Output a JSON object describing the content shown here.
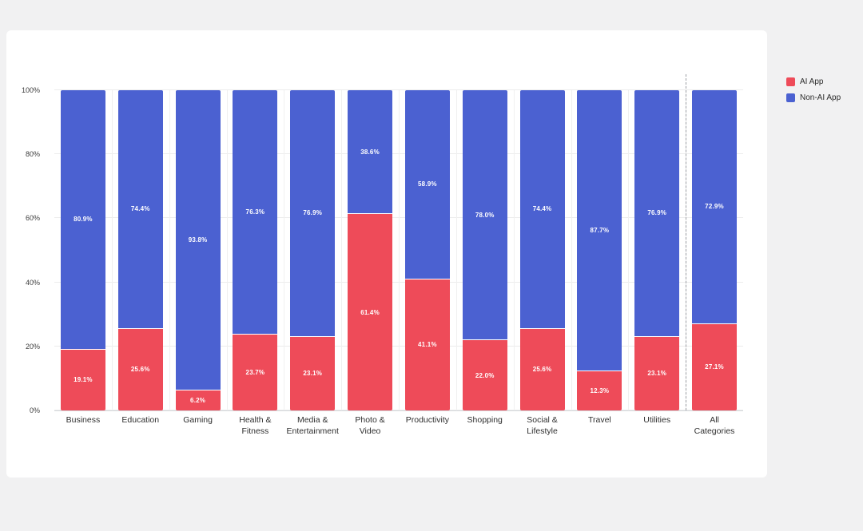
{
  "page": {
    "background": "#f1f1f2",
    "card_background": "#ffffff"
  },
  "legend": {
    "items": [
      {
        "label": "AI App",
        "color": "#ee4b59"
      },
      {
        "label": "Non-AI App",
        "color": "#4b61d1"
      }
    ]
  },
  "chart_data": {
    "type": "bar",
    "stacked": true,
    "title": "",
    "xlabel": "",
    "ylabel": "",
    "ylim": [
      0,
      100
    ],
    "grid": true,
    "legend_position": "top-right-outside",
    "categories": [
      "Business",
      "Education",
      "Gaming",
      "Health &\nFitness",
      "Media &\nEntertainment",
      "Photo &\nVideo",
      "Productivity",
      "Shopping",
      "Social &\nLifestyle",
      "Travel",
      "Utilities",
      "All\nCategories"
    ],
    "series": [
      {
        "name": "AI App",
        "color": "#ee4b59",
        "values": [
          19.1,
          25.6,
          6.2,
          23.7,
          23.1,
          61.4,
          41.1,
          22.0,
          25.6,
          12.3,
          23.1,
          27.1
        ],
        "labels": [
          "19.1%",
          "25.6%",
          "6.2%",
          "23.7%",
          "23.1%",
          "61.4%",
          "41.1%",
          "22.0%",
          "25.6%",
          "12.3%",
          "23.1%",
          "27.1%"
        ]
      },
      {
        "name": "Non-AI App",
        "color": "#4b61d1",
        "values": [
          80.9,
          74.4,
          93.8,
          76.3,
          76.9,
          38.6,
          58.9,
          78.0,
          74.4,
          87.7,
          76.9,
          72.9
        ],
        "labels": [
          "80.9%",
          "74.4%",
          "93.8%",
          "76.3%",
          "76.9%",
          "38.6%",
          "58.9%",
          "78.0%",
          "74.4%",
          "87.7%",
          "76.9%",
          "72.9%"
        ]
      }
    ],
    "yticks": [
      {
        "value": 0,
        "label": "0%"
      },
      {
        "value": 20,
        "label": "20%"
      },
      {
        "value": 40,
        "label": "40%"
      },
      {
        "value": 60,
        "label": "60%"
      },
      {
        "value": 80,
        "label": "80%"
      },
      {
        "value": 100,
        "label": "100%"
      }
    ],
    "separator": {
      "after_category_index": 10,
      "style": "dashed"
    }
  }
}
